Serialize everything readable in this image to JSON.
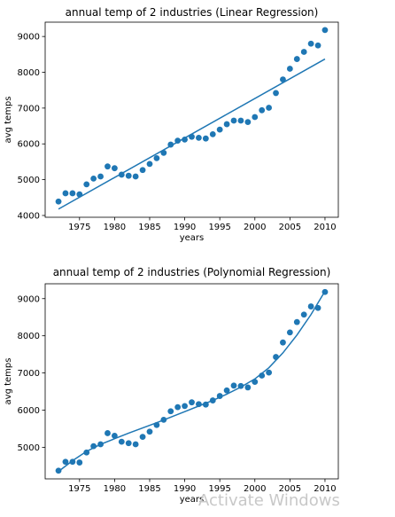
{
  "watermark": "Activate Windows",
  "colors": {
    "point": "#1f77b4",
    "line": "#1f77b4"
  },
  "chart_data": [
    {
      "type": "scatter",
      "title": "annual temp of 2 industries (Linear Regression)",
      "xlabel": "years",
      "ylabel": "avg temps",
      "xlim": [
        1970.1,
        2011.9
      ],
      "ylim": [
        3950,
        9400
      ],
      "xticks": [
        1975,
        1980,
        1985,
        1990,
        1995,
        2000,
        2005,
        2010
      ],
      "yticks": [
        4000,
        5000,
        6000,
        7000,
        8000,
        9000
      ],
      "xtick_labels": [
        "1975",
        "1980",
        "1985",
        "1990",
        "1995",
        "2000",
        "2005",
        "2010"
      ],
      "ytick_labels": [
        "4000",
        "5000",
        "6000",
        "7000",
        "8000",
        "9000"
      ],
      "grid": false,
      "series": [
        {
          "kind": "scatter",
          "x": [
            1972,
            1973,
            1974,
            1975,
            1976,
            1977,
            1978,
            1979,
            1980,
            1981,
            1982,
            1983,
            1984,
            1985,
            1986,
            1987,
            1988,
            1989,
            1990,
            1991,
            1992,
            1993,
            1994,
            1995,
            1996,
            1997,
            1998,
            1999,
            2000,
            2001,
            2002,
            2003,
            2004,
            2005,
            2006,
            2007,
            2008,
            2009,
            2010
          ],
          "y": [
            4390,
            4620,
            4620,
            4590,
            4870,
            5030,
            5090,
            5370,
            5320,
            5140,
            5110,
            5090,
            5270,
            5440,
            5600,
            5750,
            5980,
            6090,
            6120,
            6200,
            6170,
            6150,
            6270,
            6400,
            6550,
            6650,
            6650,
            6610,
            6750,
            6940,
            7010,
            7420,
            7800,
            8100,
            8370,
            8570,
            8800,
            8750,
            9180
          ]
        },
        {
          "kind": "line",
          "x": [
            1972,
            2010
          ],
          "y": [
            4180,
            8370
          ]
        }
      ]
    },
    {
      "type": "scatter",
      "title": "annual temp of 2 industries (Polynomial Regression)",
      "xlabel": "years",
      "ylabel": "avg temps",
      "xlim": [
        1970.1,
        2011.9
      ],
      "ylim": [
        4150,
        9400
      ],
      "xticks": [
        1975,
        1980,
        1985,
        1990,
        1995,
        2000,
        2005,
        2010
      ],
      "yticks": [
        5000,
        6000,
        7000,
        8000,
        9000
      ],
      "xtick_labels": [
        "1975",
        "1980",
        "1985",
        "1990",
        "1995",
        "2000",
        "2005",
        "2010"
      ],
      "ytick_labels": [
        "5000",
        "6000",
        "7000",
        "8000",
        "9000"
      ],
      "grid": false,
      "series": [
        {
          "kind": "scatter",
          "x": [
            1972,
            1973,
            1974,
            1975,
            1976,
            1977,
            1978,
            1979,
            1980,
            1981,
            1982,
            1983,
            1984,
            1985,
            1986,
            1987,
            1988,
            1989,
            1990,
            1991,
            1992,
            1993,
            1994,
            1995,
            1996,
            1997,
            1998,
            1999,
            2000,
            2001,
            2002,
            2003,
            2004,
            2005,
            2006,
            2007,
            2008,
            2009,
            2010
          ],
          "y": [
            4370,
            4610,
            4610,
            4590,
            4860,
            5030,
            5080,
            5380,
            5310,
            5150,
            5110,
            5080,
            5280,
            5420,
            5600,
            5740,
            5970,
            6080,
            6110,
            6210,
            6160,
            6150,
            6260,
            6380,
            6530,
            6660,
            6650,
            6610,
            6760,
            6930,
            7010,
            7430,
            7820,
            8090,
            8370,
            8570,
            8790,
            8750,
            9180
          ]
        },
        {
          "kind": "line",
          "x": [
            1972,
            1974,
            1976,
            1978,
            1980,
            1982,
            1984,
            1986,
            1988,
            1990,
            1992,
            1994,
            1996,
            1998,
            2000,
            2002,
            2004,
            2006,
            2008,
            2010
          ],
          "y": [
            4350,
            4640,
            4890,
            5080,
            5230,
            5380,
            5520,
            5660,
            5810,
            5960,
            6110,
            6260,
            6430,
            6620,
            6840,
            7140,
            7540,
            8020,
            8570,
            9200
          ]
        }
      ]
    }
  ]
}
